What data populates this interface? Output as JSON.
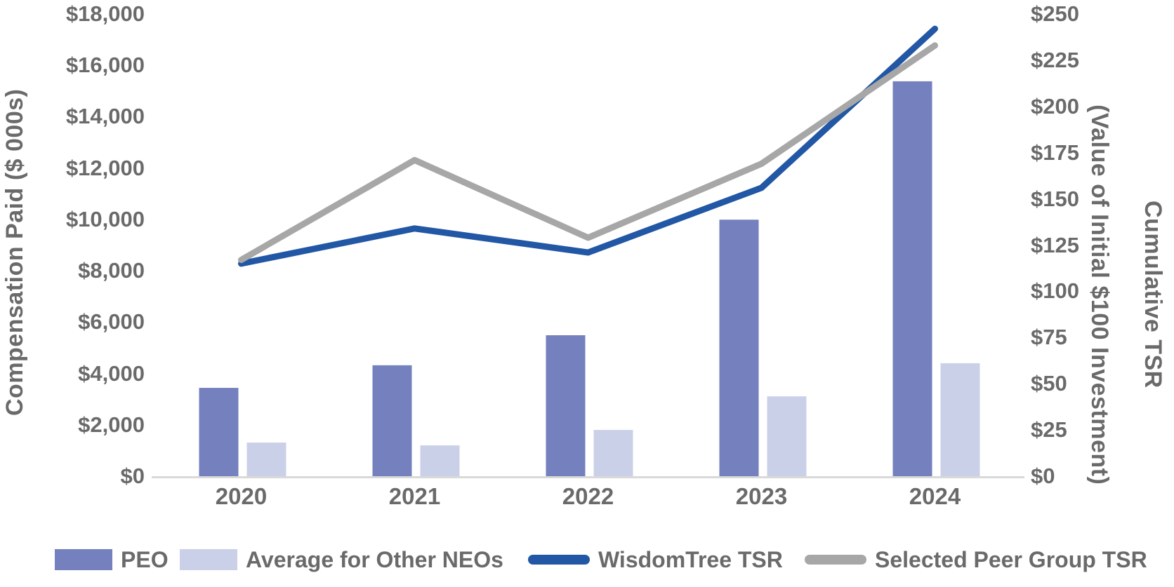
{
  "chart_data": {
    "type": "bar+line combo",
    "title": "",
    "categories": [
      "2020",
      "2021",
      "2022",
      "2023",
      "2024"
    ],
    "bar_series": [
      {
        "name": "PEO",
        "color": "#7580BE",
        "axis": "left",
        "values": [
          3440,
          4320,
          5490,
          9990,
          15380
        ]
      },
      {
        "name": "Average for Other NEOs",
        "color": "#CBD0E9",
        "axis": "left",
        "values": [
          1310,
          1200,
          1800,
          3110,
          4400
        ]
      }
    ],
    "line_series": [
      {
        "name": "WisdomTree TSR",
        "color": "#2157A4",
        "axis": "right",
        "values": [
          115,
          134,
          121,
          156,
          242
        ]
      },
      {
        "name": "Selected Peer Group TSR",
        "color": "#A7A7A7",
        "axis": "right",
        "values": [
          117,
          171,
          129,
          169,
          233
        ]
      }
    ],
    "left_axis": {
      "label": "Compensation Paid ($ 000s)",
      "min": 0,
      "max": 18000,
      "step": 2000,
      "ticks": [
        "$18,000",
        "$16,000",
        "$14,000",
        "$12,000",
        "$10,000",
        "$8,000",
        "$6,000",
        "$4,000",
        "$2,000",
        "$0"
      ]
    },
    "right_axis": {
      "label_outer": "Cumulative TSR",
      "label_inner": "(Value of Initial $100 Investment)",
      "min": 0,
      "max": 250,
      "step": 25,
      "ticks": [
        "$250",
        "$225",
        "$200",
        "$175",
        "$150",
        "$125",
        "$100",
        "$75",
        "$50",
        "$25",
        "$0"
      ]
    },
    "legend_position": "bottom",
    "grid": "off",
    "axis_line_color": "#D9D9D9",
    "text_color": "#6a6a6a"
  }
}
